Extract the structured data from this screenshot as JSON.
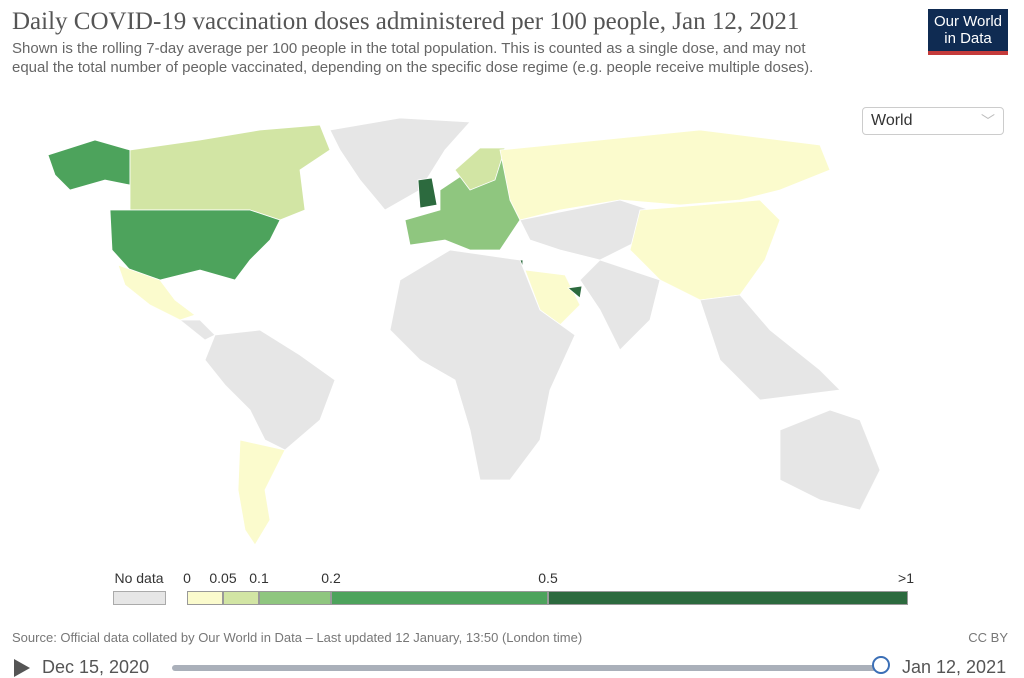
{
  "header": {
    "title": "Daily COVID-19 vaccination doses administered per 100 people, Jan 12, 2021",
    "subtitle": "Shown is the rolling 7-day average per 100 people in the total population. This is counted as a single dose, and may not equal the total number of people vaccinated, depending on the specific dose regime (e.g. people receive multiple doses).",
    "logo": [
      "Our World",
      "in Data"
    ]
  },
  "region_select": {
    "value": "World",
    "icon": "chevron-down-icon"
  },
  "legend": {
    "no_data_label": "No data",
    "no_data_color": "#e6e6e6",
    "ticks": [
      "0",
      "0.05",
      "0.1",
      "0.2",
      "0.5",
      ">1"
    ],
    "bins": [
      {
        "from": 0,
        "to": 0.05,
        "color": "#fbfbcd"
      },
      {
        "from": 0.05,
        "to": 0.1,
        "color": "#d2e5a4"
      },
      {
        "from": 0.1,
        "to": 0.2,
        "color": "#8fc67f"
      },
      {
        "from": 0.2,
        "to": 0.5,
        "color": "#4da35c"
      },
      {
        "from": 0.5,
        "to": 1,
        "color": "#2c6a3e"
      }
    ]
  },
  "map_regions": [
    {
      "name": "Canada",
      "bin": 0.05
    },
    {
      "name": "United States",
      "bin": 0.2
    },
    {
      "name": "Alaska",
      "bin": 0.2
    },
    {
      "name": "Mexico",
      "bin": 0
    },
    {
      "name": "Argentina",
      "bin": 0
    },
    {
      "name": "Chile",
      "bin": 0
    },
    {
      "name": "United Kingdom",
      "bin": 0.5
    },
    {
      "name": "Western Europe",
      "bin": 0.1
    },
    {
      "name": "Russia",
      "bin": 0
    },
    {
      "name": "China",
      "bin": 0
    },
    {
      "name": "Saudi Arabia",
      "bin": 0
    },
    {
      "name": "United Arab Emirates",
      "bin": 0.5
    },
    {
      "name": "Israel",
      "bin": 0.5
    },
    {
      "name": "Greenland",
      "bin": null
    },
    {
      "name": "South America (rest)",
      "bin": null
    },
    {
      "name": "Africa",
      "bin": null
    },
    {
      "name": "Asia (rest)",
      "bin": null
    },
    {
      "name": "Australia",
      "bin": null
    }
  ],
  "footer": {
    "source": "Source: Official data collated by Our World in Data – Last updated 12 January, 13:50 (London time)",
    "license": "CC BY"
  },
  "timeline": {
    "start": "Dec 15, 2020",
    "end": "Jan 12, 2021",
    "position": 1.0
  }
}
